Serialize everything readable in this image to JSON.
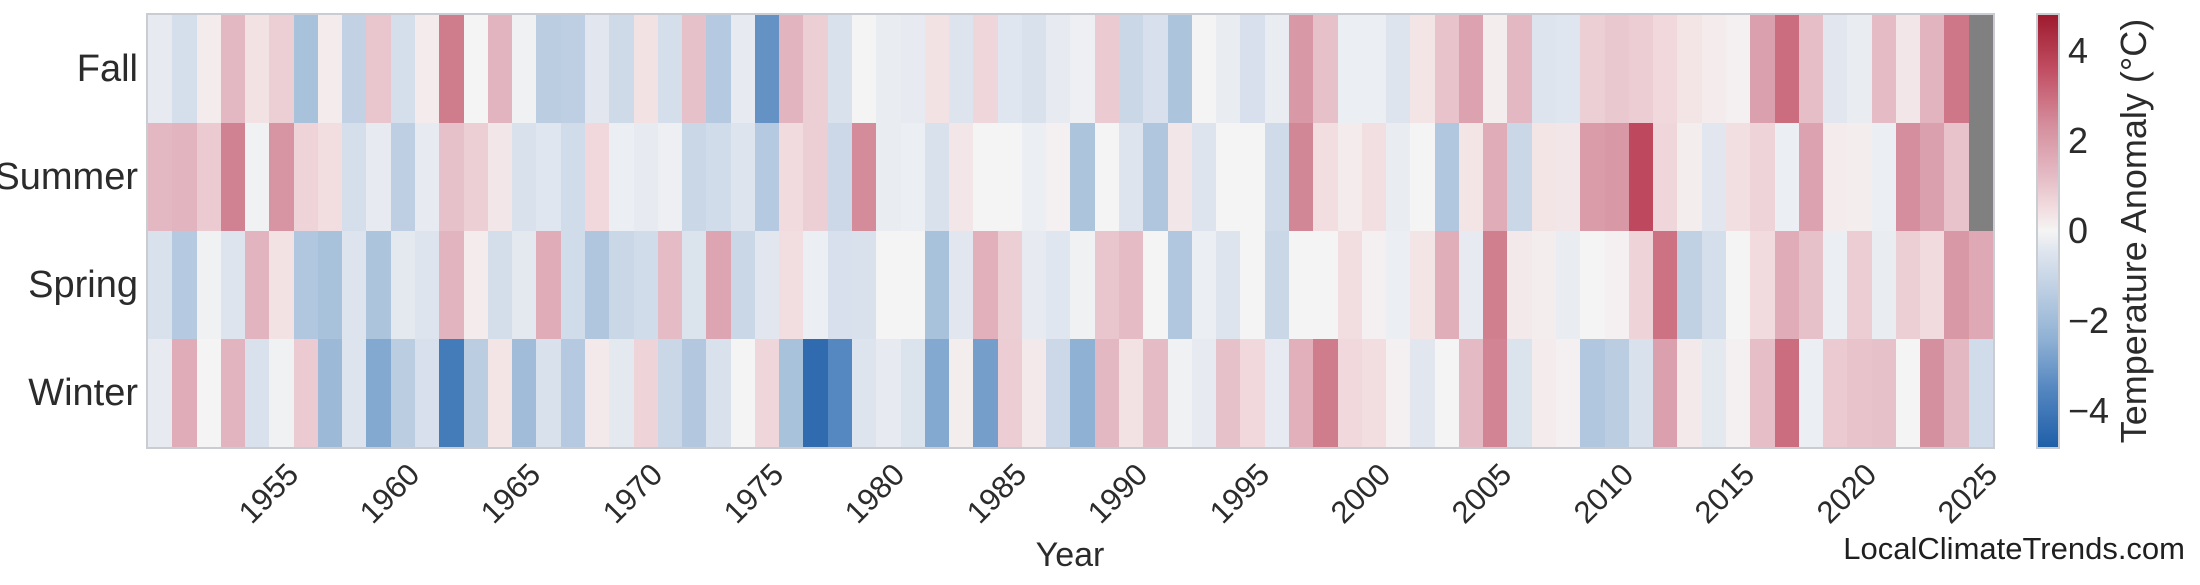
{
  "chart_data": {
    "type": "heatmap",
    "xlabel": "Year",
    "watermark": "LocalClimateTrends.com",
    "seasons": [
      "Fall",
      "Summer",
      "Spring",
      "Winter"
    ],
    "years": [
      1950,
      1951,
      1952,
      1953,
      1954,
      1955,
      1956,
      1957,
      1958,
      1959,
      1960,
      1961,
      1962,
      1963,
      1964,
      1965,
      1966,
      1967,
      1968,
      1969,
      1970,
      1971,
      1972,
      1973,
      1974,
      1975,
      1976,
      1977,
      1978,
      1979,
      1980,
      1981,
      1982,
      1983,
      1984,
      1985,
      1986,
      1987,
      1988,
      1989,
      1990,
      1991,
      1992,
      1993,
      1994,
      1995,
      1996,
      1997,
      1998,
      1999,
      2000,
      2001,
      2002,
      2003,
      2004,
      2005,
      2006,
      2007,
      2008,
      2009,
      2010,
      2011,
      2012,
      2013,
      2014,
      2015,
      2016,
      2017,
      2018,
      2019,
      2020,
      2021,
      2022,
      2023,
      2024,
      2025
    ],
    "x_ticks": [
      1955,
      1960,
      1965,
      1970,
      1975,
      1980,
      1985,
      1990,
      1995,
      2000,
      2005,
      2010,
      2015,
      2020,
      2025
    ],
    "series": [
      {
        "name": "Fall",
        "values": [
          -0.3,
          -0.7,
          0.2,
          1.3,
          0.4,
          0.8,
          -1.8,
          0.2,
          -1.2,
          1.0,
          -0.7,
          0.2,
          2.7,
          0.0,
          1.4,
          -0.1,
          -1.4,
          -1.3,
          -0.4,
          -0.9,
          0.4,
          -0.7,
          1.1,
          -1.5,
          -0.3,
          -3.2,
          1.4,
          0.8,
          -0.6,
          0.0,
          -0.25,
          -0.3,
          0.4,
          -0.5,
          0.65,
          -0.45,
          -0.6,
          -0.3,
          -0.15,
          0.9,
          -1.0,
          -0.65,
          -1.7,
          0.0,
          -0.25,
          -0.65,
          -0.25,
          2.1,
          1.1,
          -0.2,
          -0.2,
          -0.5,
          0.35,
          1.05,
          1.85,
          0.15,
          1.3,
          -0.5,
          -0.45,
          0.8,
          0.95,
          0.85,
          0.6,
          0.35,
          0.2,
          0.1,
          1.9,
          3.0,
          1.15,
          -0.4,
          -0.25,
          1.2,
          0.3,
          1.4,
          2.8,
          null
        ]
      },
      {
        "name": "Summer",
        "values": [
          1.3,
          1.4,
          0.9,
          2.6,
          -0.1,
          2.2,
          0.7,
          0.5,
          -0.7,
          -0.3,
          -1.3,
          -0.3,
          1.1,
          0.8,
          0.3,
          -0.6,
          -0.45,
          -0.8,
          0.6,
          -0.2,
          -0.3,
          -0.15,
          -1.0,
          -0.8,
          -0.5,
          -1.5,
          0.55,
          0.8,
          -0.95,
          2.4,
          -0.25,
          -0.2,
          -0.6,
          0.3,
          0.0,
          0.0,
          -0.2,
          0.1,
          -1.7,
          0.0,
          -0.5,
          -1.65,
          0.3,
          -0.5,
          0.0,
          0.0,
          -0.85,
          2.5,
          0.5,
          0.2,
          0.45,
          -0.25,
          0.0,
          -1.6,
          0.35,
          1.6,
          -1.0,
          0.35,
          0.3,
          2.0,
          2.1,
          3.7,
          0.65,
          0.15,
          -0.4,
          0.45,
          0.7,
          -0.2,
          1.85,
          0.2,
          0.15,
          -0.2,
          2.35,
          1.9,
          1.05,
          null
        ]
      },
      {
        "name": "Spring",
        "values": [
          -0.6,
          -1.5,
          -0.1,
          -0.5,
          1.4,
          0.4,
          -1.6,
          -1.8,
          -0.5,
          -1.7,
          -0.35,
          -0.5,
          1.4,
          0.2,
          -0.75,
          -0.35,
          1.6,
          -0.8,
          -1.65,
          -1.0,
          -0.8,
          1.2,
          -0.55,
          1.8,
          -1.0,
          -0.4,
          0.5,
          -0.2,
          -0.65,
          -0.6,
          0.0,
          0.0,
          -1.8,
          -0.4,
          1.5,
          0.8,
          -0.3,
          -0.45,
          -0.1,
          1.0,
          1.2,
          0.0,
          -1.6,
          -0.2,
          -0.5,
          0.0,
          -1.0,
          0.0,
          0.0,
          0.5,
          0.1,
          -0.2,
          0.35,
          1.55,
          -0.3,
          2.65,
          0.25,
          0.15,
          -0.25,
          0.0,
          0.1,
          0.7,
          2.9,
          -1.25,
          -0.7,
          0.0,
          0.55,
          1.6,
          1.1,
          -0.2,
          0.85,
          -0.25,
          0.8,
          0.55,
          2.1,
          1.7
        ]
      },
      {
        "name": "Winter",
        "values": [
          -0.3,
          1.6,
          0.0,
          1.4,
          -0.6,
          -0.1,
          0.9,
          -2.1,
          -0.5,
          -2.6,
          -1.4,
          -0.65,
          -3.9,
          -1.4,
          0.35,
          -2.0,
          -0.6,
          -1.5,
          0.25,
          -0.35,
          0.7,
          -1.0,
          -1.55,
          -0.6,
          0.0,
          0.65,
          -1.8,
          -4.4,
          -3.5,
          -0.5,
          -0.3,
          -0.55,
          -2.6,
          0.15,
          -2.9,
          0.85,
          0.25,
          -0.95,
          -2.4,
          1.3,
          0.4,
          1.2,
          -0.1,
          -0.3,
          1.1,
          0.6,
          -0.3,
          1.5,
          2.7,
          0.6,
          0.5,
          0.1,
          -0.4,
          0.0,
          1.25,
          2.55,
          -0.55,
          0.2,
          0.1,
          -1.6,
          -1.4,
          -0.6,
          1.9,
          0.25,
          -0.35,
          0.1,
          1.15,
          3.0,
          -0.2,
          0.9,
          1.05,
          1.1,
          0.0,
          2.3,
          1.3,
          -0.8
        ]
      }
    ],
    "colorbar": {
      "label": "Temperature Anomaly (°C)",
      "ticks": [
        4,
        2,
        0,
        -2,
        -4
      ],
      "tick_labels": [
        "4",
        "2",
        "0",
        "−2",
        "−4"
      ],
      "vmin": -4.8,
      "vmax": 4.8,
      "missing_color": "#808080"
    },
    "colormap_stops": [
      {
        "value": -4.8,
        "color": "#1f5fa9"
      },
      {
        "value": -3.5,
        "color": "#5587c0"
      },
      {
        "value": -2.4,
        "color": "#8fb1d4"
      },
      {
        "value": -1.2,
        "color": "#c2d2e4"
      },
      {
        "value": -0.5,
        "color": "#dde4ee"
      },
      {
        "value": 0.0,
        "color": "#f5f4f4"
      },
      {
        "value": 0.5,
        "color": "#f2dde0"
      },
      {
        "value": 1.2,
        "color": "#e5bcc6"
      },
      {
        "value": 2.4,
        "color": "#d48c9b"
      },
      {
        "value": 3.6,
        "color": "#c14d62"
      },
      {
        "value": 4.8,
        "color": "#9e1b2e"
      }
    ]
  }
}
